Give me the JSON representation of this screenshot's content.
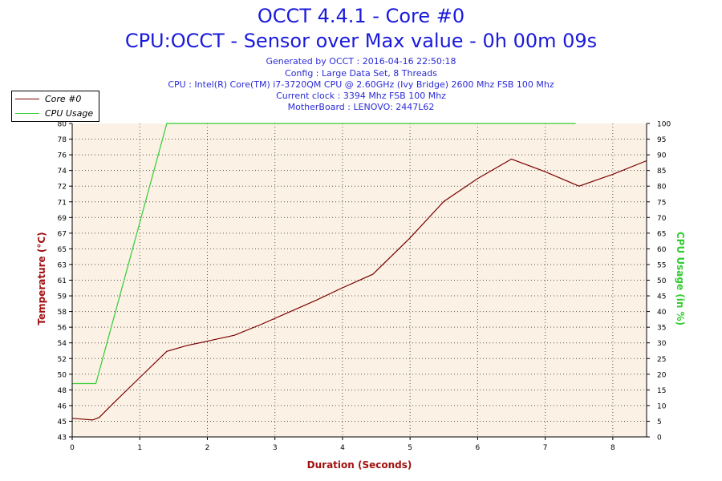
{
  "header": {
    "title": "OCCT 4.4.1 - Core #0",
    "subtitle": "CPU:OCCT - Sensor over Max value - 0h 00m 09s",
    "info_lines": [
      "Generated by OCCT : 2016-04-16 22:50:18",
      "Config : Large Data Set, 8 Threads",
      "CPU : Intel(R) Core(TM) i7-3720QM CPU @ 2.60GHz (Ivy Bridge) 2600 Mhz FSB 100 Mhz",
      "Current clock : 3394 Mhz FSB 100 Mhz",
      "MotherBoard : LENOVO: 2447L62"
    ]
  },
  "legend": {
    "items": [
      {
        "label": "Core #0",
        "color": "#7a0000"
      },
      {
        "label": "CPU Usage",
        "color": "#33cc33"
      }
    ]
  },
  "chart_data": {
    "type": "line",
    "xlabel": "Duration (Seconds)",
    "ylabel_left": "Temperature (°C)",
    "ylabel_right": "CPU Usage (in %)",
    "xlim": [
      0,
      8.5
    ],
    "ylim_left": [
      43,
      80
    ],
    "ylim_right": [
      0,
      100
    ],
    "x_ticks": [
      "0",
      "1",
      "2",
      "3",
      "4",
      "5",
      "6",
      "7",
      "8"
    ],
    "y_left_ticks": [
      "43",
      "45",
      "46",
      "48",
      "50",
      "52",
      "54",
      "56",
      "58",
      "59",
      "61",
      "63",
      "65",
      "67",
      "69",
      "71",
      "72",
      "74",
      "76",
      "78",
      "80"
    ],
    "y_right_ticks": [
      "0",
      "5",
      "10",
      "15",
      "20",
      "25",
      "30",
      "35",
      "40",
      "45",
      "50",
      "55",
      "60",
      "65",
      "70",
      "75",
      "80",
      "85",
      "90",
      "95",
      "100"
    ],
    "grid": true,
    "legend_position": "top-left",
    "series": [
      {
        "name": "Core #0",
        "color": "#7a0000",
        "axis": "left",
        "x": [
          0,
          0.15,
          0.3,
          0.4,
          0.6,
          1.0,
          1.4,
          1.7,
          2.0,
          2.4,
          2.8,
          3.2,
          3.6,
          4.0,
          4.45,
          5.0,
          5.5,
          6.0,
          6.5,
          7.0,
          7.5,
          8.0,
          8.5
        ],
        "values": [
          45.2,
          45.1,
          45.0,
          45.3,
          46.9,
          50.0,
          53.1,
          53.8,
          54.3,
          55.0,
          56.3,
          57.7,
          59.1,
          60.6,
          62.2,
          66.5,
          70.8,
          73.5,
          75.8,
          74.3,
          72.6,
          74.0,
          75.6
        ]
      },
      {
        "name": "CPU Usage",
        "color": "#33cc33",
        "axis": "right",
        "x": [
          0,
          0.35,
          1.4,
          7.45
        ],
        "values": [
          17,
          17,
          100,
          100
        ]
      }
    ]
  }
}
